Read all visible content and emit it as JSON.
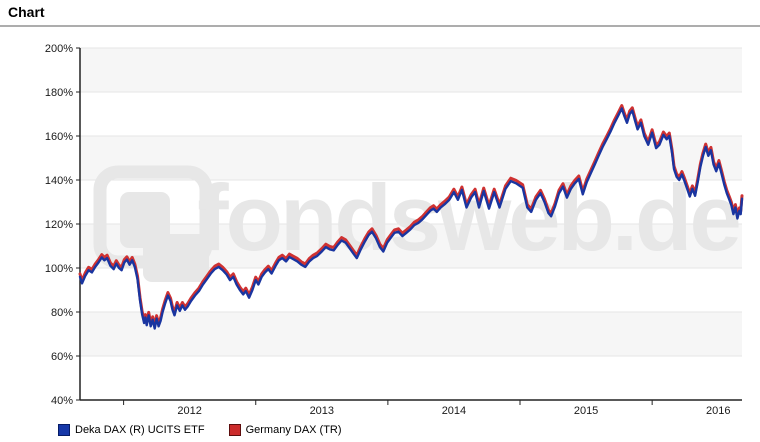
{
  "header": {
    "title": "Chart"
  },
  "watermark": {
    "text": "fondsweb.de"
  },
  "legend": [
    {
      "label": "Deka DAX (R) UCITS ETF",
      "swatch_color": "#1638a8",
      "swatch_border": "#061c66"
    },
    {
      "label": "Germany DAX (TR)",
      "swatch_color": "#cc2c2c",
      "swatch_border": "#5c0d0d"
    }
  ],
  "chart_data": {
    "type": "line",
    "title": "",
    "xlabel": "",
    "ylabel": "",
    "grid": "horizontal-bands-alternating",
    "legend_position": "bottom-left",
    "band_color": "#f6f6f6",
    "gridline_color": "#e5e5e5",
    "axis_color": "#222222",
    "label_color": "#1a1a1a",
    "watermark_color": "#e7e7e7",
    "x_axis": {
      "labels": [
        "2012",
        "2013",
        "2014",
        "2015",
        "2016"
      ],
      "label_positions_years": [
        2012,
        2013,
        2014,
        2015,
        2016
      ],
      "tick_positions_years": [
        2011.5,
        2012.5,
        2013.5,
        2014.5,
        2015.5
      ],
      "range_years": [
        2011.17,
        2016.18
      ]
    },
    "y_axis": {
      "unit": "%",
      "min": 40,
      "max": 200,
      "step": 20,
      "tick_labels": [
        "40%",
        "60%",
        "80%",
        "100%",
        "120%",
        "140%",
        "160%",
        "180%",
        "200%"
      ]
    },
    "series": [
      {
        "name": "Deka DAX (R) UCITS ETF",
        "color": "#1a35a0",
        "stroke_width": 2.4,
        "points": [
          [
            2011.17,
            96
          ],
          [
            2011.185,
            93
          ],
          [
            2011.21,
            96.5
          ],
          [
            2011.235,
            99
          ],
          [
            2011.26,
            98
          ],
          [
            2011.285,
            100.5
          ],
          [
            2011.31,
            102.5
          ],
          [
            2011.335,
            104.8
          ],
          [
            2011.355,
            103.5
          ],
          [
            2011.375,
            104.5
          ],
          [
            2011.4,
            101
          ],
          [
            2011.425,
            99.5
          ],
          [
            2011.445,
            102
          ],
          [
            2011.465,
            100
          ],
          [
            2011.485,
            99
          ],
          [
            2011.505,
            102.5
          ],
          [
            2011.525,
            103.8
          ],
          [
            2011.545,
            101.5
          ],
          [
            2011.565,
            103.5
          ],
          [
            2011.585,
            100.5
          ],
          [
            2011.605,
            95
          ],
          [
            2011.625,
            85
          ],
          [
            2011.64,
            79
          ],
          [
            2011.655,
            75
          ],
          [
            2011.665,
            77.5
          ],
          [
            2011.675,
            74
          ],
          [
            2011.69,
            78.5
          ],
          [
            2011.705,
            73.5
          ],
          [
            2011.72,
            76.5
          ],
          [
            2011.735,
            72.5
          ],
          [
            2011.75,
            77
          ],
          [
            2011.765,
            73.5
          ],
          [
            2011.78,
            76
          ],
          [
            2011.795,
            80
          ],
          [
            2011.815,
            84
          ],
          [
            2011.835,
            87.5
          ],
          [
            2011.855,
            85
          ],
          [
            2011.87,
            81
          ],
          [
            2011.885,
            78.5
          ],
          [
            2011.905,
            83
          ],
          [
            2011.925,
            80.5
          ],
          [
            2011.945,
            83
          ],
          [
            2011.965,
            81
          ],
          [
            2011.985,
            82.5
          ],
          [
            2012.01,
            85
          ],
          [
            2012.04,
            87.5
          ],
          [
            2012.07,
            89.5
          ],
          [
            2012.1,
            92.5
          ],
          [
            2012.13,
            95
          ],
          [
            2012.16,
            97.5
          ],
          [
            2012.19,
            99.5
          ],
          [
            2012.22,
            100.5
          ],
          [
            2012.25,
            99
          ],
          [
            2012.28,
            97
          ],
          [
            2012.305,
            94.5
          ],
          [
            2012.33,
            96
          ],
          [
            2012.355,
            92.5
          ],
          [
            2012.38,
            90
          ],
          [
            2012.405,
            88
          ],
          [
            2012.425,
            89.5
          ],
          [
            2012.45,
            86.5
          ],
          [
            2012.475,
            90
          ],
          [
            2012.5,
            94.5
          ],
          [
            2012.52,
            92.5
          ],
          [
            2012.545,
            96
          ],
          [
            2012.57,
            98
          ],
          [
            2012.595,
            99.5
          ],
          [
            2012.62,
            97.5
          ],
          [
            2012.65,
            101
          ],
          [
            2012.675,
            103.5
          ],
          [
            2012.7,
            104.5
          ],
          [
            2012.73,
            103
          ],
          [
            2012.755,
            105
          ],
          [
            2012.785,
            104
          ],
          [
            2012.815,
            103
          ],
          [
            2012.845,
            101.5
          ],
          [
            2012.875,
            100.5
          ],
          [
            2012.905,
            103
          ],
          [
            2012.935,
            104.5
          ],
          [
            2012.965,
            105.5
          ],
          [
            2013.0,
            107.5
          ],
          [
            2013.03,
            109.5
          ],
          [
            2013.06,
            108.5
          ],
          [
            2013.09,
            108
          ],
          [
            2013.12,
            110.5
          ],
          [
            2013.15,
            112.5
          ],
          [
            2013.18,
            111.5
          ],
          [
            2013.21,
            109
          ],
          [
            2013.24,
            106.5
          ],
          [
            2013.265,
            104.5
          ],
          [
            2013.295,
            108.5
          ],
          [
            2013.325,
            112
          ],
          [
            2013.355,
            115
          ],
          [
            2013.38,
            116.5
          ],
          [
            2013.41,
            113.5
          ],
          [
            2013.44,
            109.5
          ],
          [
            2013.465,
            107.5
          ],
          [
            2013.495,
            111.5
          ],
          [
            2013.525,
            114
          ],
          [
            2013.55,
            116
          ],
          [
            2013.58,
            116.5
          ],
          [
            2013.61,
            114.5
          ],
          [
            2013.64,
            116
          ],
          [
            2013.67,
            117.5
          ],
          [
            2013.7,
            119.5
          ],
          [
            2013.73,
            120.5
          ],
          [
            2013.76,
            122
          ],
          [
            2013.79,
            124
          ],
          [
            2013.82,
            126
          ],
          [
            2013.845,
            127
          ],
          [
            2013.87,
            125.5
          ],
          [
            2013.9,
            127.5
          ],
          [
            2013.93,
            129
          ],
          [
            2013.965,
            131
          ],
          [
            2014.0,
            134.5
          ],
          [
            2014.03,
            131
          ],
          [
            2014.06,
            135.5
          ],
          [
            2014.095,
            127.5
          ],
          [
            2014.13,
            132
          ],
          [
            2014.16,
            134.5
          ],
          [
            2014.19,
            127.5
          ],
          [
            2014.225,
            135
          ],
          [
            2014.265,
            127
          ],
          [
            2014.305,
            134.5
          ],
          [
            2014.345,
            127.5
          ],
          [
            2014.39,
            136
          ],
          [
            2014.43,
            139.5
          ],
          [
            2014.47,
            138.5
          ],
          [
            2014.52,
            136.5
          ],
          [
            2014.555,
            127.5
          ],
          [
            2014.585,
            125.5
          ],
          [
            2014.62,
            131
          ],
          [
            2014.655,
            134
          ],
          [
            2014.685,
            130
          ],
          [
            2014.715,
            125
          ],
          [
            2014.735,
            123.5
          ],
          [
            2014.765,
            128
          ],
          [
            2014.795,
            134
          ],
          [
            2014.825,
            137
          ],
          [
            2014.855,
            132
          ],
          [
            2014.885,
            136
          ],
          [
            2014.915,
            138.5
          ],
          [
            2014.945,
            140.5
          ],
          [
            2014.975,
            133.5
          ],
          [
            2015.005,
            139
          ],
          [
            2015.035,
            143
          ],
          [
            2015.065,
            147
          ],
          [
            2015.095,
            151
          ],
          [
            2015.125,
            155
          ],
          [
            2015.155,
            158.5
          ],
          [
            2015.185,
            162
          ],
          [
            2015.215,
            166
          ],
          [
            2015.245,
            169.5
          ],
          [
            2015.27,
            172.5
          ],
          [
            2015.29,
            169
          ],
          [
            2015.31,
            166
          ],
          [
            2015.33,
            170
          ],
          [
            2015.35,
            171.5
          ],
          [
            2015.37,
            167
          ],
          [
            2015.39,
            163
          ],
          [
            2015.415,
            166
          ],
          [
            2015.44,
            160
          ],
          [
            2015.47,
            156
          ],
          [
            2015.5,
            161.5
          ],
          [
            2015.53,
            154.5
          ],
          [
            2015.555,
            156
          ],
          [
            2015.585,
            160.5
          ],
          [
            2015.61,
            158.5
          ],
          [
            2015.63,
            160
          ],
          [
            2015.65,
            152.5
          ],
          [
            2015.665,
            145
          ],
          [
            2015.685,
            141.5
          ],
          [
            2015.705,
            140
          ],
          [
            2015.725,
            142.5
          ],
          [
            2015.745,
            139.5
          ],
          [
            2015.765,
            136
          ],
          [
            2015.785,
            132.5
          ],
          [
            2015.805,
            136
          ],
          [
            2015.825,
            132.8
          ],
          [
            2015.845,
            139
          ],
          [
            2015.865,
            146
          ],
          [
            2015.885,
            151
          ],
          [
            2015.905,
            155
          ],
          [
            2015.925,
            151
          ],
          [
            2015.945,
            153.5
          ],
          [
            2015.965,
            147
          ],
          [
            2015.985,
            144
          ],
          [
            2016.005,
            147.5
          ],
          [
            2016.025,
            143
          ],
          [
            2016.045,
            138
          ],
          [
            2016.065,
            134
          ],
          [
            2016.085,
            131
          ],
          [
            2016.1,
            128.5
          ],
          [
            2016.115,
            124.5
          ],
          [
            2016.13,
            127.5
          ],
          [
            2016.145,
            122.5
          ],
          [
            2016.16,
            126
          ],
          [
            2016.17,
            124.5
          ],
          [
            2016.18,
            131.5
          ]
        ]
      },
      {
        "name": "Germany DAX (TR)",
        "color": "#cf3232",
        "stroke_width": 3.0,
        "derived": {
          "from_series": 0,
          "offset_pct": 1.3
        }
      }
    ]
  }
}
